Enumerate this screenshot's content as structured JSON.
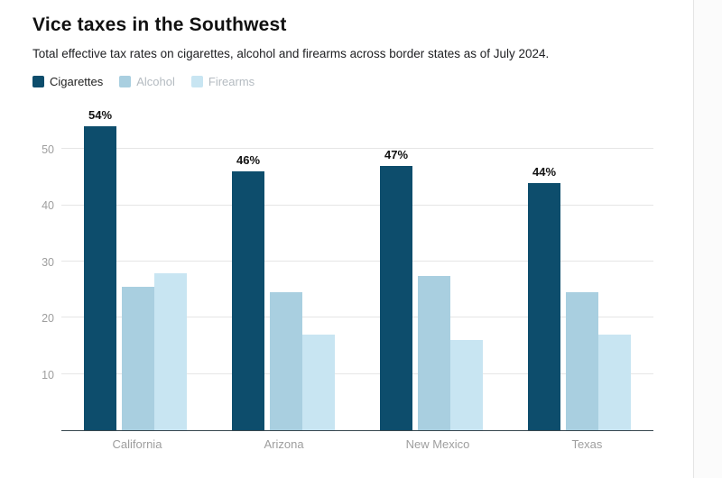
{
  "header": {
    "title": "Vice taxes in the Southwest",
    "subtitle": "Total effective tax rates on cigarettes, alcohol and firearms across border states as of July 2024."
  },
  "colors": {
    "cigarettes": "#0d4d6c",
    "alcohol": "#a9cfe0",
    "firearms": "#c8e5f2",
    "axis_line": "#37474f",
    "gridline": "#e6e6e6",
    "axis_text": "#9e9e9e"
  },
  "legend": [
    {
      "label": "Cigarettes",
      "color": "#0d4d6c",
      "text_color": "#222222"
    },
    {
      "label": "Alcohol",
      "color": "#a9cfe0",
      "text_color": "#b4bbc1"
    },
    {
      "label": "Firearms",
      "color": "#c8e5f2",
      "text_color": "#b4bbc1"
    }
  ],
  "chart_data": {
    "type": "bar",
    "title": "Vice taxes in the Southwest",
    "subtitle": "Total effective tax rates on cigarettes, alcohol and firearms across border states as of July 2024.",
    "categories": [
      "California",
      "Arizona",
      "New Mexico",
      "Texas"
    ],
    "series": [
      {
        "name": "Cigarettes",
        "color": "#0d4d6c",
        "values": [
          54,
          46,
          47,
          44
        ],
        "labels": [
          "54%",
          "46%",
          "47%",
          "44%"
        ]
      },
      {
        "name": "Alcohol",
        "color": "#a9cfe0",
        "values": [
          25.5,
          24.5,
          27.5,
          24.5
        ]
      },
      {
        "name": "Firearms",
        "color": "#c8e5f2",
        "values": [
          28,
          17,
          16,
          17
        ]
      }
    ],
    "xlabel": "",
    "ylabel": "",
    "ylim": [
      0,
      56
    ],
    "yticks": [
      10,
      20,
      30,
      40,
      50
    ],
    "grid": true,
    "legend_position": "top-left"
  }
}
